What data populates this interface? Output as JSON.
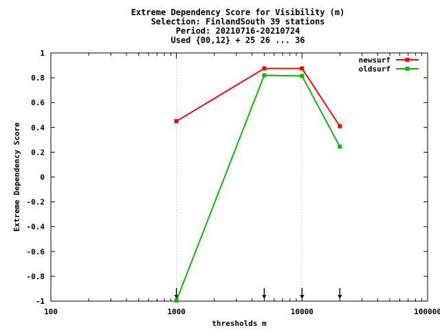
{
  "chart_data": {
    "type": "line",
    "title_lines": [
      "Extreme Dependency Score  for Visibility (m)",
      "Selection: FinlandSouth     39 stations",
      "Period: 20210716-20210724",
      "Used {00,12} + 25 26 ... 36"
    ],
    "xlabel": "thresholds m",
    "ylabel": "Extreme Dependency Score",
    "xscale": "log",
    "xlim": [
      100,
      100000
    ],
    "ylim": [
      -1,
      1
    ],
    "x_ticks": [
      100,
      1000,
      10000,
      100000
    ],
    "x_tick_labels": [
      "100",
      "1000",
      "10000",
      "100000"
    ],
    "y_ticks": [
      -1,
      -0.8,
      -0.6,
      -0.4,
      -0.2,
      0,
      0.2,
      0.4,
      0.6,
      0.8,
      1
    ],
    "y_tick_labels": [
      "-1",
      "-0.8",
      "-0.6",
      "-0.4",
      "-0.2",
      "0",
      "0.2",
      "0.4",
      "0.6",
      "0.8",
      "1"
    ],
    "grid": "vertical dotted at 1000 and 10000",
    "legend_position": "top-right",
    "series": [
      {
        "name": "newsurf",
        "color": "#ff0000",
        "x": [
          1000,
          5000,
          10000,
          20000
        ],
        "values": [
          0.45,
          0.875,
          0.875,
          0.41
        ]
      },
      {
        "name": "oldsurf",
        "color": "#00c000",
        "x": [
          1000,
          5000,
          10000,
          20000
        ],
        "values": [
          -0.995,
          0.82,
          0.815,
          0.245
        ]
      }
    ],
    "threshold_markers": [
      1000,
      5000,
      10000,
      20000
    ]
  }
}
